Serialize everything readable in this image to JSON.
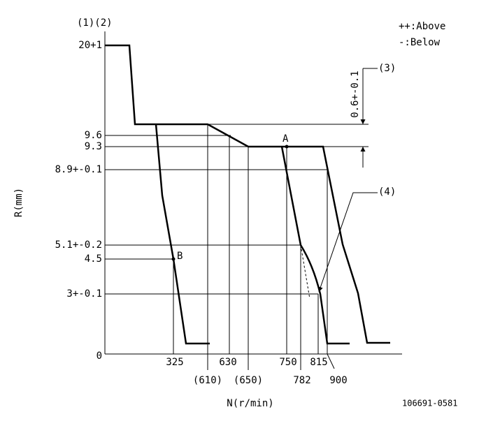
{
  "header": {
    "label": "(1)(2)"
  },
  "legend": {
    "above": "++:Above",
    "below": "-:Below"
  },
  "y_labels": [
    "20+1",
    "9.6",
    "9.3",
    "8.9+-0.1",
    "5.1+-0.2",
    "4.5",
    "3+-0.1",
    "0"
  ],
  "x_labels": [
    "325",
    "630",
    "750",
    "815",
    "(610)",
    "(650)",
    "782",
    "900"
  ],
  "axis": {
    "y": "R(mm)",
    "x": "N(r/min)"
  },
  "points": {
    "a": "A",
    "b": "B"
  },
  "callouts": {
    "three": "(3)",
    "four": "(4)",
    "tolerance": "0.6+-0.1"
  },
  "footer": {
    "code": "106691-0581"
  }
}
